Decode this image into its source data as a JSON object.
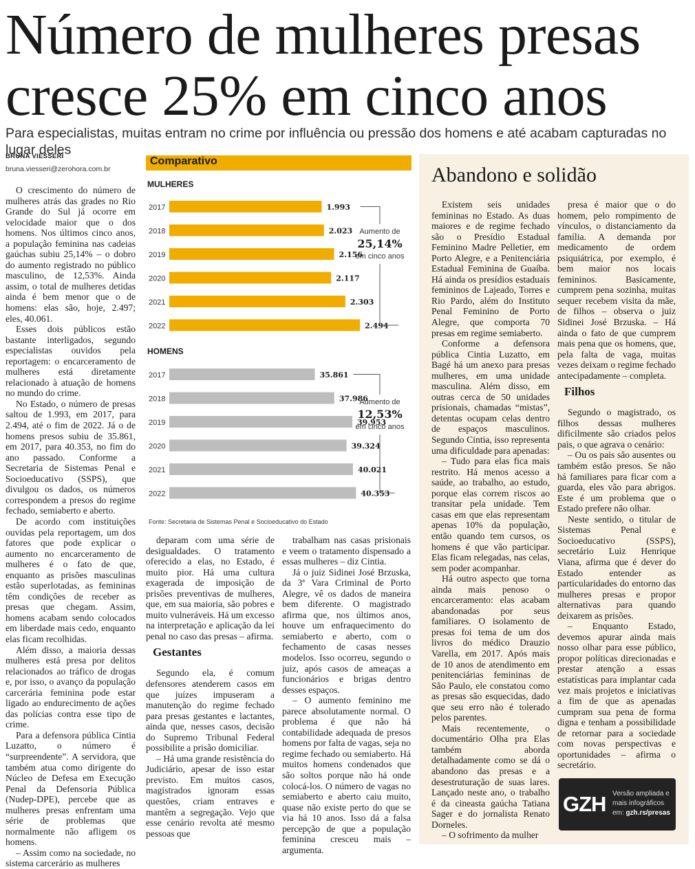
{
  "headline": {
    "line1": "Número de mulheres presas",
    "line2": "cresce 25% em cinco anos"
  },
  "deck": "Para especialistas, muitas entram no crime por influência ou pressão dos homens e até acabam capturadas no lugar deles",
  "byline": {
    "author": "BRUNA VIESSERI",
    "email": "bruna.viesseri@zerohora.com.br"
  },
  "columns": {
    "col1": [
      "O crescimento do número de mulheres atrás das grades no Rio Grande do Sul já ocorre em velocidade maior que o dos homens. Nos últimos cinco anos, a população feminina nas cadeias gaúchas subiu 25,14% – o dobro do aumento registrado no público masculino, de 12,53%. Ainda assim, o total de mulheres detidas ainda é bem menor que o de homens: elas são, hoje, 2.497; eles, 40.061.",
      "Esses dois públicos estão bastante interligados, segundo especialistas ouvidos pela reportagem: o encarceramento de mulheres está diretamente relacionado à atuação de homens no mundo do crime.",
      "No Estado, o número de presas saltou de 1.993, em 2017, para 2.494, até o fim de 2022. Já o de homens presos subiu de 35.861, em 2017, para 40.353, no fim do ano passado. Conforme a Secretaria de Sistemas Penal e Socioeducativo (SSPS), que divulgou os dados, os números correspondem a presos do regime fechado, semiaberto e aberto.",
      "De acordo com instituições ouvidas pela reportagem, um dos fatores que pode explicar o aumento no encarceramento de mulheres é o fato de que, enquanto as prisões masculinas estão superlotadas, as femininas têm condições de receber as presas que chegam. Assim, homens acabam sendo colocados em liberdade mais cedo, enquanto elas ficam recolhidas.",
      "Além disso, a maioria dessas mulheres está presa por delitos relacionados ao tráfico de drogas e, por isso, o avanço da população carcerária feminina pode estar ligado ao endurecimento de ações das polícias contra esse tipo de crime.",
      "Para a defensora pública Cintia Luzatto, o número é “surpreendente”. A servidora, que também atua como dirigente do Núcleo de Defesa em Execução Penal da Defensoria Pública (Nudep-DPE), percebe que as mulheres presas enfrentam uma série de problemas que normalmente não afligem os homens.",
      "– Assim como na sociedade, no sistema carcerário as mulheres"
    ],
    "col2_a": [
      "deparam com uma série de desigualdades. O tratamento oferecido a elas, no Estado, é muito pior. Há uma cultura exagerada de imposição de prisões preventivas de mulheres, que, em sua maioria, são pobres e muito vulneráveis. Há um excesso na interpretação e aplicação da lei penal no caso das presas – afirma."
    ],
    "col2_heading": "Gestantes",
    "col2_b": [
      "Segundo ela, é comum defensores atenderem casos em que juízes impuseram a manutenção do regime fechado para presas gestantes e lactantes, ainda que, nesses casos, decisão do Supremo Tribunal Federal possibilite a prisão domiciliar.",
      "– Há uma grande resistência do Judiciário, apesar de isso estar previsto. Em muitos casos, magistrados ignoram essas questões, criam entraves e mantêm a segregação. Vejo que esse cenário revolta até mesmo pessoas que"
    ],
    "col3": [
      "trabalham nas casas prisionais e veem o tratamento dispensado a essas mulheres – diz Cintia.",
      "Já o juiz Sidinei José Brzuska, da 3ª Vara Criminal de Porto Alegre, vê os dados de maneira bem diferente. O magistrado afirma que, nos últimos anos, houve um enfraquecimento do semiaberto e aberto, com o fechamento de casas nesses modelos. Isso ocorreu, segundo o juiz, após casos de ameaças a funcionários e brigas dentro desses espaços.",
      "– O aumento feminino me parece absolutamente normal. O problema é que não há contabilidade adequada de presos homens por falta de vagas, seja no regime fechado ou semiaberto. Há muitos homens condenados que são soltos porque não há onde colocá-los. O número de vagas no semiaberto e aberto caiu muito, quase não existe perto do que se via há 10 anos. Isso dá a falsa percepção de que a população feminina cresceu mais – argumenta."
    ],
    "col4": [
      "Existem seis unidades femininas no Estado. As duas maiores e de regime fechado são o Presídio Estadual Feminino Madre Pelletier, em Porto Alegre, e a Penitenciária Estadual Feminina de Guaíba. Há ainda os presídios estaduais femininos de Lajeado, Torres e Rio Pardo, além do Instituto Penal Feminino de Porto Alegre, que comporta 70 presas em regime semiaberto.",
      "Conforme a defensora pública Cintia Luzatto, em Bagé há um anexo para presas mulheres, em uma unidade masculina. Além disso, em outras cerca de 50 unidades prisionais, chamadas “mistas”, detentas ocupam celas dentro de espaços masculinos. Segundo Cintia, isso representa uma dificuldade para apenadas:",
      "– Tudo para elas fica mais restrito. Há menos acesso a saúde, ao trabalho, ao estudo, porque elas correm riscos ao transitar pela unidade. Tem casas em que elas representam apenas 10% da população, então quando tem cursos, os homens é que vão participar. Elas ficam relegadas, nas celas, sem poder acompanhar.",
      "Há outro aspecto que torna ainda mais penoso o encarceramento: elas acabam abandonadas por seus familiares. O isolamento de presas foi tema de um dos livros do médico Drauzio Varella, em 2017. Após mais de 10 anos de atendimento em penitenciárias femininas de São Paulo, ele constatou como as presas são esquecidas, dado que seu erro não é tolerado pelos parentes.",
      "Mais recentemente, o documentário Olha pra Elas também aborda detalhadamente como se dá o abandono das presas e a desestruturação de suas lares. Lançado neste ano, o trabalho é da cineasta gaúcha Tatiana Sager e do jornalista Renato Dorneles.",
      "– O sofrimento da mulher"
    ],
    "col5_a": [
      "presa é maior que o do homem, pelo rompimento de vínculos, o distanciamento da família. A demanda por medicamento de ordem psiquiátrica, por exemplo, é bem maior nos locais femininos. Basicamente, cumprem pena sozinha, muitas sequer recebem visita da mãe, de filhos – observa o juiz Sidinei José Brzuska. – Há ainda o fato de que cumprem mais pena que os homens, que, pela falta de vaga, muitas vezes deixam o regime fechado antecipadamente – completa."
    ],
    "col5_heading": "Filhos",
    "col5_b": [
      "Segundo o magistrado, os filhos dessas mulheres dificilmente são criados pelos pais, o que agrava o cenário:",
      "– Ou os pais são ausentes ou também estão presos. Se não há familiares para ficar com a guarda, eles vão para abrigos. Este é um problema que o Estado prefere não olhar.",
      "Neste sentido, o titular de Sistemas Penal e Socioeducativo (SSPS), secretário Luiz Henrique Viana, afirma que é dever do Estado entender as particularidades do entorno das mulheres presas e propor alternativas para quando deixarem as prisões.",
      "– Enquanto Estado, devemos apurar ainda mais nosso olhar para esse público, propor políticas direcionadas e prestar atenção a essas estatísticas para implantar cada vez mais projetos e iniciativas a fim de que as apenadas cumpram sua pena de forma digna e tenham a possibilidade de retornar para a sociedade com novas perspectivas e oportunidades – afirma o secretário."
    ]
  },
  "sidebar": {
    "title": "Abandono e solidão"
  },
  "promo": {
    "logo": "GZH",
    "line1": "Versão ampliada e",
    "line2": "mais infográficos",
    "line3_prefix": "em: ",
    "line3_link": "gzh.rs/presas"
  },
  "chart_data": [
    {
      "type": "bar",
      "title": "Comparativo",
      "panel_label": "MULHERES",
      "categories": [
        "2017",
        "2018",
        "2019",
        "2020",
        "2021",
        "2022"
      ],
      "values": [
        1993,
        2023,
        2156,
        2117,
        2303,
        2494
      ],
      "value_labels": [
        "1.993",
        "2.023",
        "2.156",
        "2.117",
        "2.303",
        "2.494"
      ],
      "annotation": {
        "top": "Aumento de",
        "value": "25,14%",
        "bottom": "em cinco anos"
      },
      "color": "#f0ad00"
    },
    {
      "type": "bar",
      "panel_label": "HOMENS",
      "categories": [
        "2017",
        "2018",
        "2019",
        "2020",
        "2021",
        "2022"
      ],
      "values": [
        35861,
        37986,
        39953,
        39324,
        40021,
        40353
      ],
      "value_labels": [
        "35.861",
        "37.986",
        "39.953",
        "39.324",
        "40.021",
        "40.353"
      ],
      "annotation": {
        "top": "Aumento de",
        "value": "12,53%",
        "bottom": "em cinco anos"
      },
      "color": "#bdbdbd"
    }
  ],
  "chart_source": "Fonte: Secretaria de Sistemas Penal e Socioeducativo do Estado"
}
